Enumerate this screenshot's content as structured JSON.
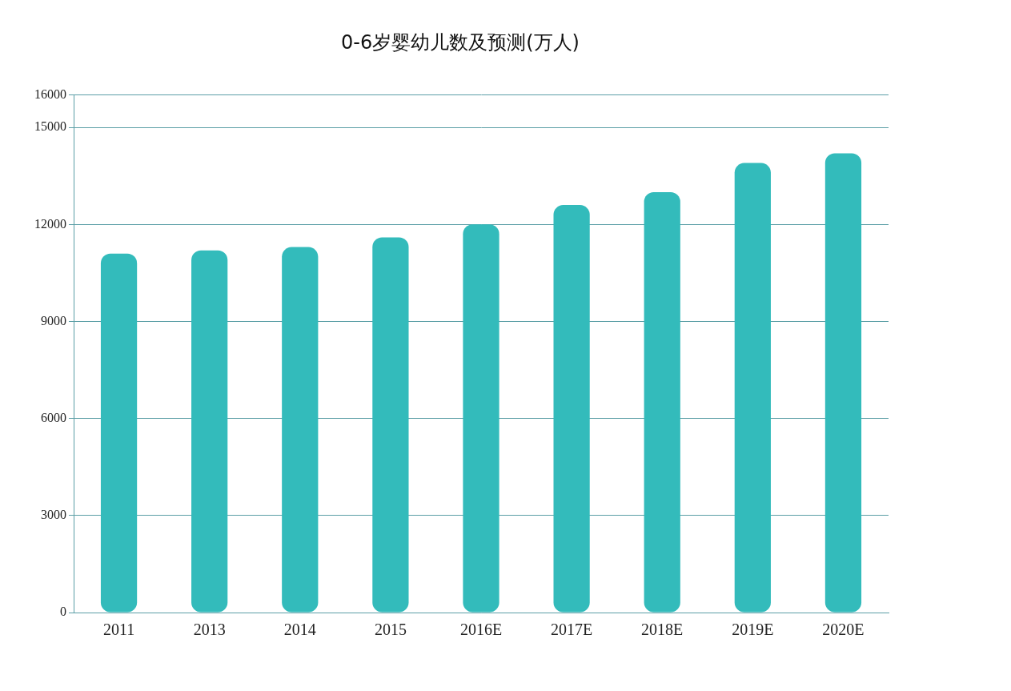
{
  "chart_data": {
    "type": "bar",
    "title": "0-6岁婴幼儿数及预测(万人)",
    "categories": [
      "2011",
      "2013",
      "2014",
      "2015",
      "2016E",
      "2017E",
      "2018E",
      "2019E",
      "2020E"
    ],
    "values": [
      11100,
      11200,
      11300,
      11600,
      12000,
      12600,
      13000,
      13900,
      14200
    ],
    "color": "#33bbbb",
    "ylim": [
      0,
      16000
    ],
    "yticks": [
      0,
      3000,
      6000,
      9000,
      12000,
      15000,
      16000
    ],
    "grid": true
  }
}
